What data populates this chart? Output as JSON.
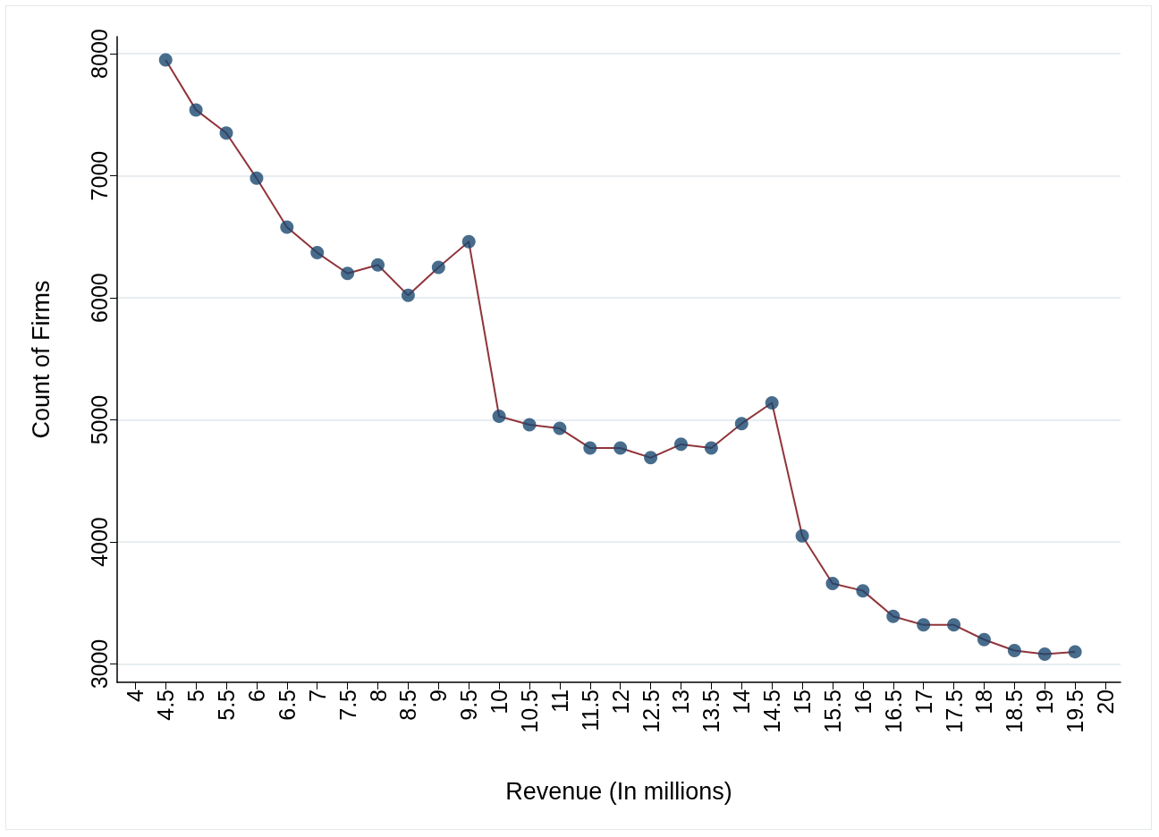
{
  "chart_data": {
    "type": "line",
    "xlabel": "Revenue (In millions)",
    "ylabel": "Count of Firms",
    "x": [
      4.5,
      5,
      5.5,
      6,
      6.5,
      7,
      7.5,
      8,
      8.5,
      9,
      9.5,
      10,
      10.5,
      11,
      11.5,
      12,
      12.5,
      13,
      13.5,
      14,
      14.5,
      15,
      15.5,
      16,
      16.5,
      17,
      17.5,
      18,
      18.5,
      19,
      19.5
    ],
    "series": [
      {
        "color": "#90353b",
        "marker": "none",
        "values": [
          7950,
          7540,
          7350,
          6980,
          6580,
          6370,
          6200,
          6270,
          6020,
          6250,
          6460,
          5030,
          4960,
          4930,
          4770,
          4770,
          4690,
          4800,
          4770,
          4970,
          5140,
          4050,
          3660,
          3600,
          3390,
          3320,
          3320,
          3200,
          3110,
          3080,
          3100
        ]
      },
      {
        "type": "scatter",
        "color": "#1a476f",
        "marker": "circle",
        "values": [
          7950,
          7540,
          7350,
          6980,
          6580,
          6370,
          6200,
          6270,
          6020,
          6250,
          6460,
          5030,
          4960,
          4930,
          4770,
          4770,
          4690,
          4800,
          4770,
          4970,
          5140,
          4050,
          3660,
          3600,
          3390,
          3320,
          3320,
          3200,
          3110,
          3080,
          3100
        ]
      }
    ],
    "xlim": [
      3.7,
      20.25
    ],
    "xticks": [
      4,
      4.5,
      5,
      5.5,
      6,
      6.5,
      7,
      7.5,
      8,
      8.5,
      9,
      9.5,
      10,
      10.5,
      11,
      11.5,
      12,
      12.5,
      13,
      13.5,
      14,
      14.5,
      15,
      15.5,
      16,
      16.5,
      17,
      17.5,
      18,
      18.5,
      19,
      19.5,
      20
    ],
    "ylim": [
      2850,
      8140
    ],
    "yticks": [
      3000,
      4000,
      5000,
      6000,
      7000,
      8000
    ],
    "grid": "y"
  }
}
